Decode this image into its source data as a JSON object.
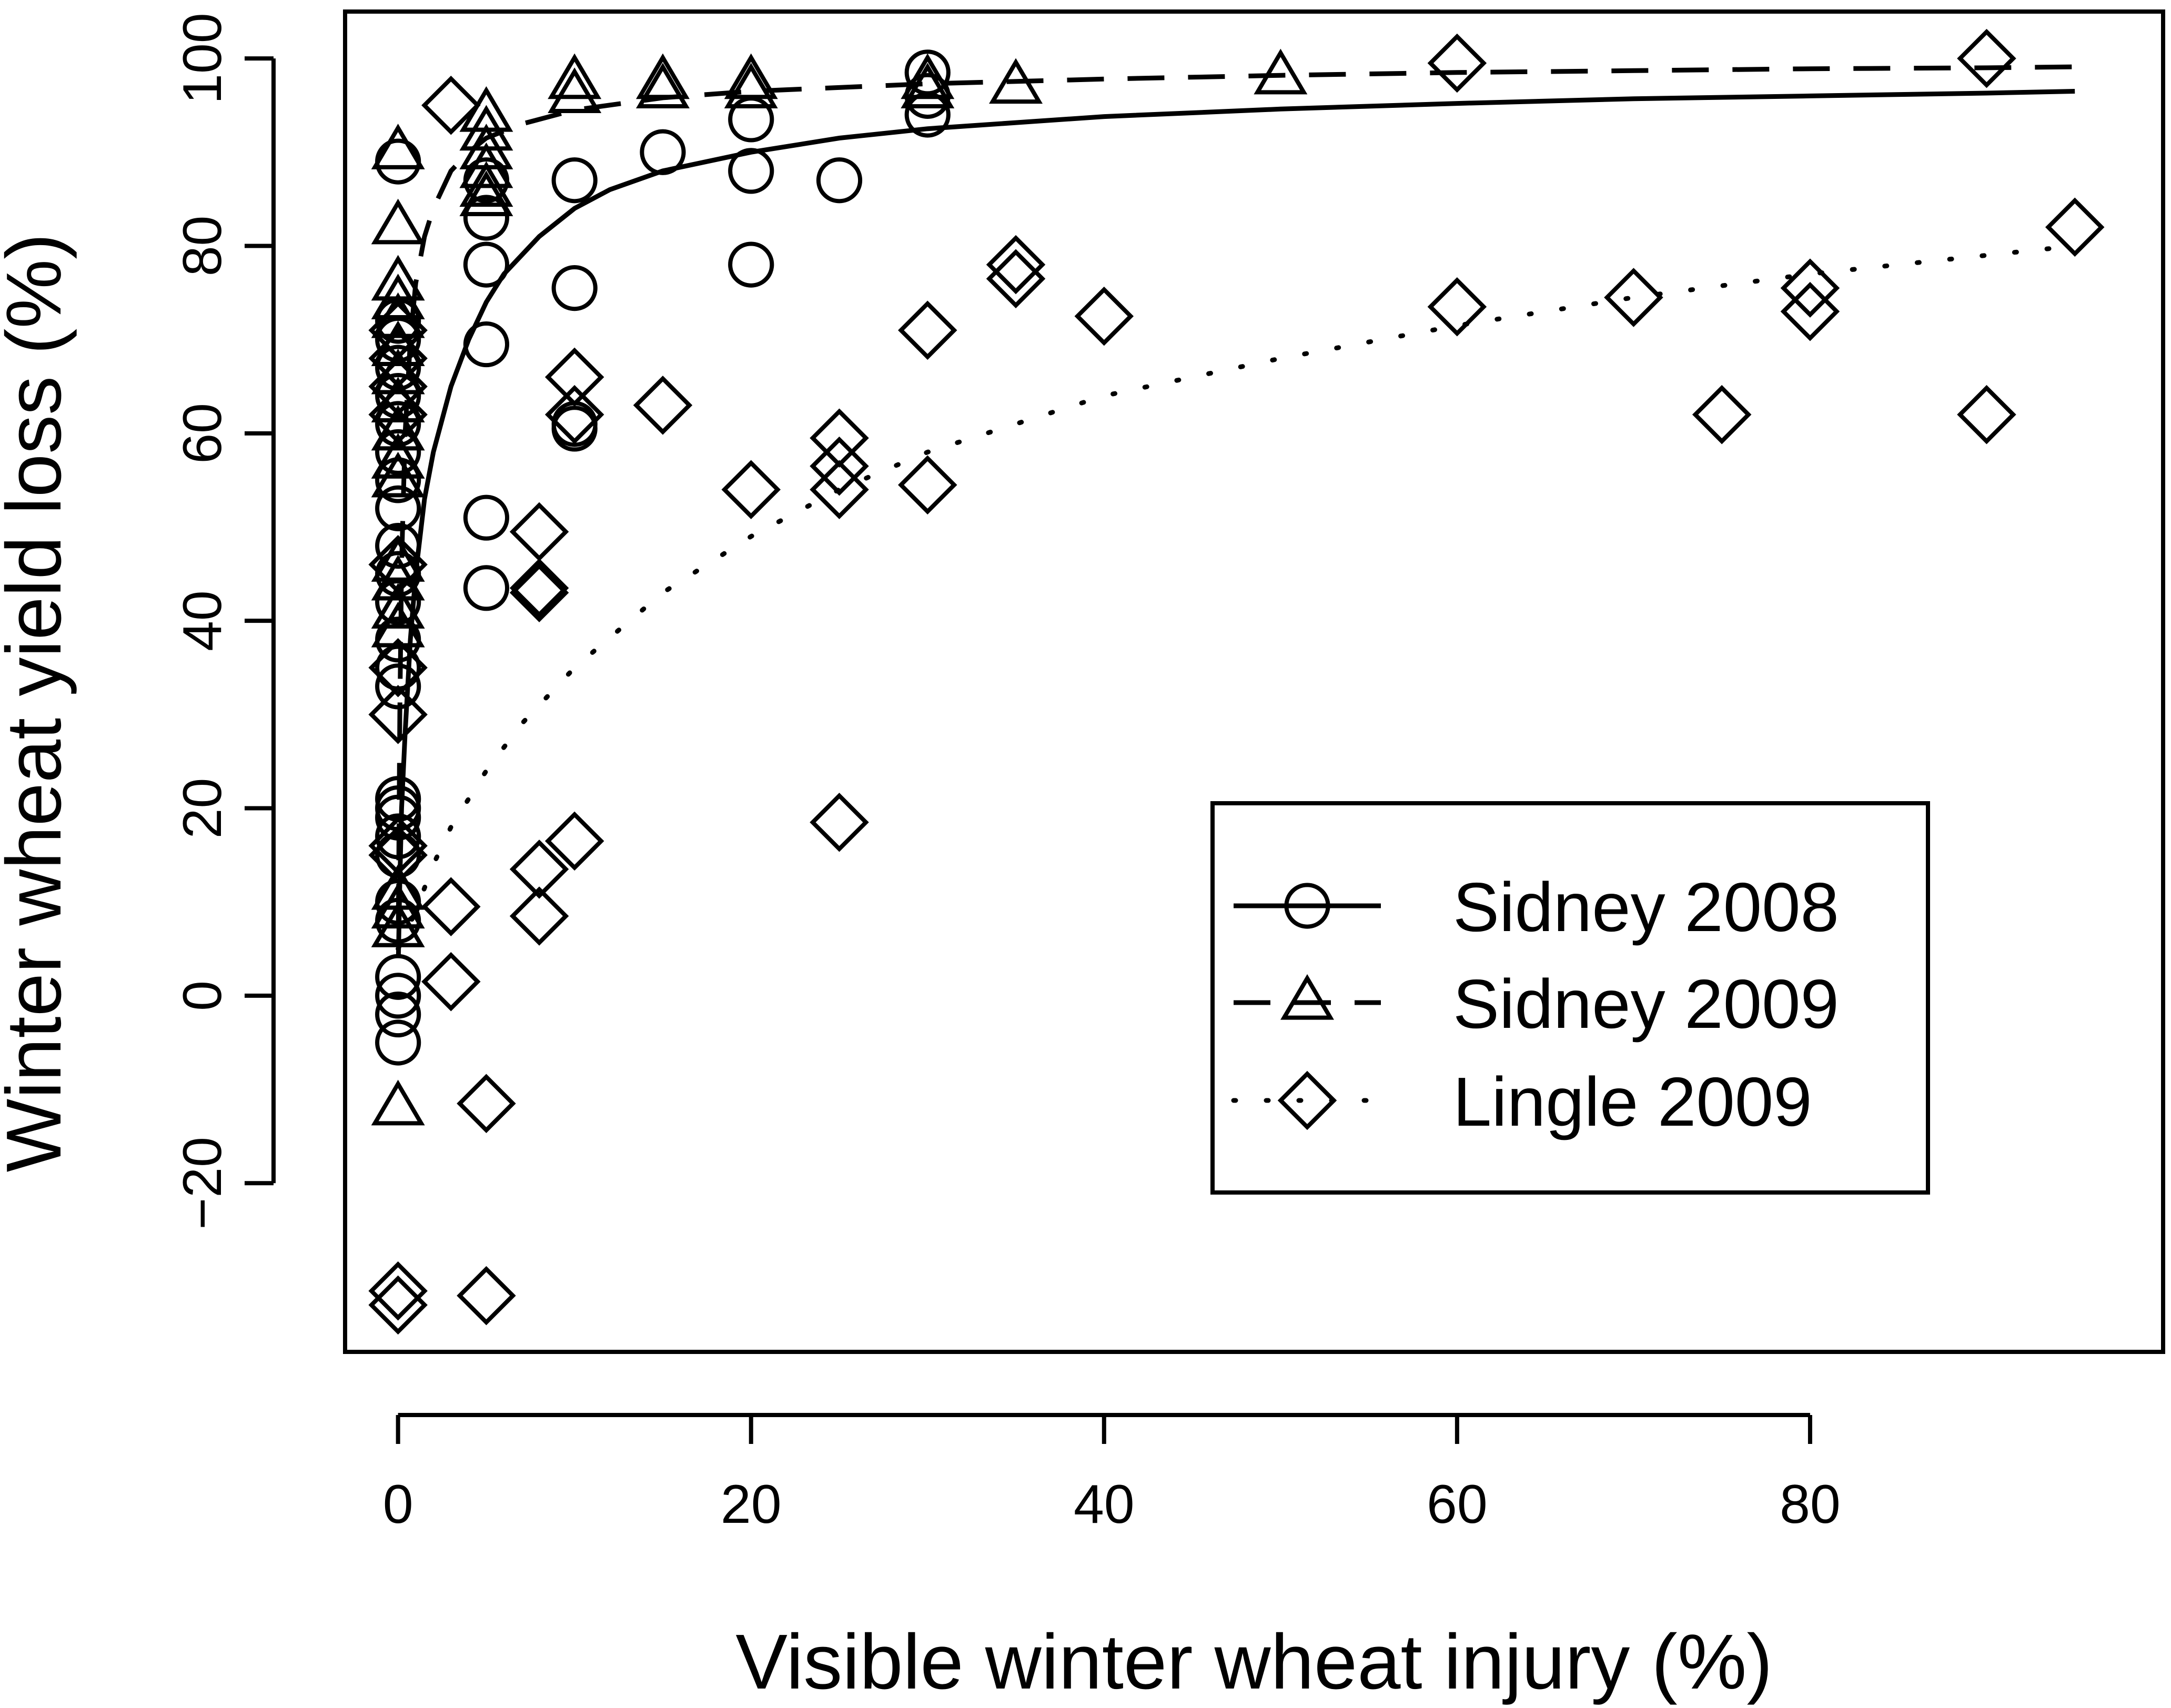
{
  "chart_data": {
    "type": "scatter",
    "xlabel": "Visible winter wheat injury (%)",
    "ylabel": "Winter wheat yield loss (%)",
    "xlim": [
      -3,
      100
    ],
    "ylim": [
      -38,
      105
    ],
    "xticks": [
      0,
      20,
      40,
      60,
      80
    ],
    "yticks": [
      -20,
      0,
      20,
      40,
      60,
      80,
      100
    ],
    "grid": false,
    "legend_position": "bottom-right",
    "series": [
      {
        "name": "Sidney 2008",
        "marker": "circle",
        "line_style": "solid",
        "points": [
          [
            0,
            89
          ],
          [
            0,
            72
          ],
          [
            0,
            70
          ],
          [
            0,
            67
          ],
          [
            0,
            64
          ],
          [
            0,
            61
          ],
          [
            0,
            58
          ],
          [
            0,
            55
          ],
          [
            0,
            52
          ],
          [
            0,
            48
          ],
          [
            0,
            45
          ],
          [
            0,
            42
          ],
          [
            0,
            38
          ],
          [
            0,
            35
          ],
          [
            0,
            33
          ],
          [
            0,
            21
          ],
          [
            0,
            20
          ],
          [
            0,
            19
          ],
          [
            0,
            17
          ],
          [
            0,
            15
          ],
          [
            0,
            10
          ],
          [
            0,
            8
          ],
          [
            0,
            2
          ],
          [
            0,
            0
          ],
          [
            0,
            -2
          ],
          [
            0,
            -5
          ],
          [
            5,
            87
          ],
          [
            5,
            83
          ],
          [
            5,
            78
          ],
          [
            5,
            69.5
          ],
          [
            5,
            51
          ],
          [
            5,
            43.5
          ],
          [
            10,
            87
          ],
          [
            10,
            75.5
          ],
          [
            10,
            61
          ],
          [
            10,
            60.5
          ],
          [
            15,
            90
          ],
          [
            20,
            93.5
          ],
          [
            20,
            88
          ],
          [
            20,
            78
          ],
          [
            25,
            87
          ],
          [
            30,
            98.5
          ],
          [
            30,
            96
          ],
          [
            30,
            94
          ]
        ],
        "fit": [
          [
            0.02,
            4
          ],
          [
            0.1,
            12
          ],
          [
            0.2,
            20
          ],
          [
            0.4,
            28
          ],
          [
            0.7,
            38
          ],
          [
            1,
            45
          ],
          [
            1.5,
            53
          ],
          [
            2,
            58
          ],
          [
            3,
            65
          ],
          [
            4,
            70
          ],
          [
            5,
            74
          ],
          [
            6,
            77
          ],
          [
            8,
            81
          ],
          [
            10,
            84
          ],
          [
            12,
            86
          ],
          [
            15,
            88
          ],
          [
            20,
            90
          ],
          [
            25,
            91.5
          ],
          [
            30,
            92.5
          ],
          [
            40,
            93.8
          ],
          [
            50,
            94.6
          ],
          [
            60,
            95.2
          ],
          [
            70,
            95.7
          ],
          [
            80,
            96
          ],
          [
            90,
            96.3
          ],
          [
            95,
            96.5
          ]
        ]
      },
      {
        "name": "Sidney 2009",
        "marker": "triangle",
        "line_style": "dashed",
        "points": [
          [
            0,
            90
          ],
          [
            0,
            82
          ],
          [
            0,
            76
          ],
          [
            0,
            74
          ],
          [
            0,
            72
          ],
          [
            0,
            69
          ],
          [
            0,
            66
          ],
          [
            0,
            63
          ],
          [
            0,
            60
          ],
          [
            0,
            57
          ],
          [
            0,
            55
          ],
          [
            0,
            46
          ],
          [
            0,
            44
          ],
          [
            0,
            41
          ],
          [
            0,
            39
          ],
          [
            0,
            11
          ],
          [
            0,
            9
          ],
          [
            0,
            7
          ],
          [
            0,
            -12
          ],
          [
            5,
            94
          ],
          [
            5,
            92
          ],
          [
            5,
            90
          ],
          [
            5,
            88
          ],
          [
            5,
            86
          ],
          [
            5,
            85
          ],
          [
            10,
            97.5
          ],
          [
            10,
            96
          ],
          [
            15,
            97.5
          ],
          [
            15,
            96.5
          ],
          [
            20,
            97.5
          ],
          [
            20,
            96.5
          ],
          [
            30,
            97.5
          ],
          [
            30,
            96.5
          ],
          [
            35,
            97
          ],
          [
            50,
            98
          ]
        ],
        "fit": [
          [
            0.02,
            8
          ],
          [
            0.1,
            30
          ],
          [
            0.2,
            46
          ],
          [
            0.4,
            60
          ],
          [
            0.7,
            70
          ],
          [
            1,
            76
          ],
          [
            1.5,
            81
          ],
          [
            2,
            84
          ],
          [
            3,
            88
          ],
          [
            4,
            90
          ],
          [
            5,
            91.5
          ],
          [
            7,
            93
          ],
          [
            10,
            94.5
          ],
          [
            15,
            95.8
          ],
          [
            20,
            96.5
          ],
          [
            30,
            97.3
          ],
          [
            40,
            97.8
          ],
          [
            50,
            98.2
          ],
          [
            60,
            98.5
          ],
          [
            70,
            98.7
          ],
          [
            80,
            98.9
          ],
          [
            90,
            99
          ],
          [
            95,
            99.1
          ]
        ]
      },
      {
        "name": "Lingle 2009",
        "marker": "diamond",
        "line_style": "dotted",
        "points": [
          [
            0,
            71
          ],
          [
            0,
            68
          ],
          [
            0,
            65
          ],
          [
            0,
            62
          ],
          [
            0,
            46
          ],
          [
            0,
            35
          ],
          [
            0,
            30
          ],
          [
            0,
            16
          ],
          [
            0,
            15
          ],
          [
            0,
            -31.5
          ],
          [
            0,
            -33
          ],
          [
            3,
            95
          ],
          [
            3,
            9.5
          ],
          [
            3,
            1.5
          ],
          [
            5,
            -11.5
          ],
          [
            5,
            -32
          ],
          [
            8,
            49.5
          ],
          [
            8,
            43.5
          ],
          [
            8,
            43
          ],
          [
            8,
            13.5
          ],
          [
            8,
            8.5
          ],
          [
            10,
            66
          ],
          [
            10,
            62
          ],
          [
            10,
            16.5
          ],
          [
            15,
            63
          ],
          [
            20,
            54
          ],
          [
            25,
            59.5
          ],
          [
            25,
            56.5
          ],
          [
            25,
            54
          ],
          [
            25,
            18.5
          ],
          [
            30,
            71
          ],
          [
            30,
            54.5
          ],
          [
            35,
            78
          ],
          [
            35,
            76.5
          ],
          [
            40,
            72.5
          ],
          [
            60,
            99.5
          ],
          [
            60,
            73.5
          ],
          [
            70,
            74.5
          ],
          [
            75,
            62
          ],
          [
            80,
            75.5
          ],
          [
            80,
            73
          ],
          [
            90,
            100
          ],
          [
            90,
            62
          ],
          [
            95,
            82
          ]
        ],
        "fit": [
          [
            0,
            5
          ],
          [
            1,
            9
          ],
          [
            2,
            14
          ],
          [
            3,
            18
          ],
          [
            5,
            24
          ],
          [
            7,
            29
          ],
          [
            10,
            35
          ],
          [
            15,
            43
          ],
          [
            20,
            49
          ],
          [
            25,
            54
          ],
          [
            30,
            58
          ],
          [
            35,
            61
          ],
          [
            40,
            64
          ],
          [
            50,
            68
          ],
          [
            60,
            71.5
          ],
          [
            70,
            74.5
          ],
          [
            80,
            77
          ],
          [
            90,
            79
          ],
          [
            95,
            80
          ]
        ]
      }
    ]
  }
}
